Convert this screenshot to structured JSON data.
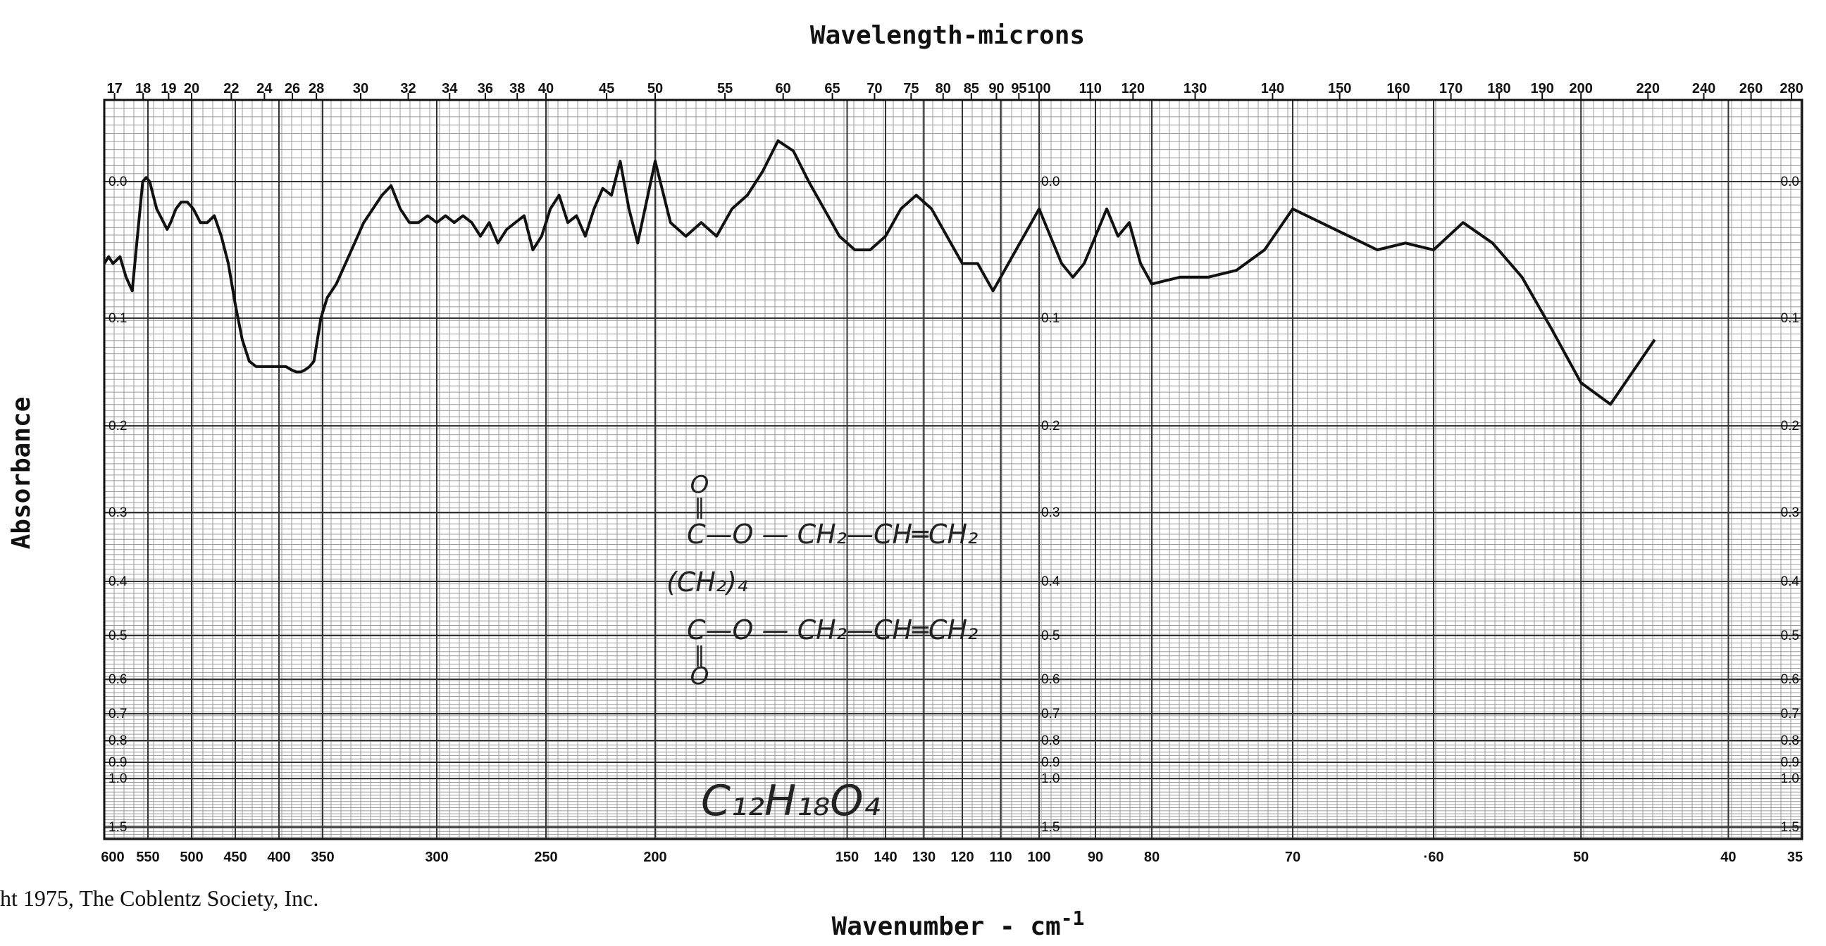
{
  "chart_data": {
    "type": "line",
    "title": "",
    "top_axis_label": "Wavelength-microns",
    "xlabel": "Wavenumber - cm",
    "xlabel_superscript": "-1",
    "ylabel": "Absorbance",
    "copyright": "ht 1975, The Coblentz Society, Inc.",
    "x_segments": [
      {
        "from": 600,
        "to": 350,
        "ticks": [
          600,
          550,
          500,
          450,
          400,
          350
        ]
      },
      {
        "from": 350,
        "to": 300,
        "ticks": [
          300
        ]
      },
      {
        "from": 300,
        "to": 200,
        "ticks": [
          250,
          200
        ]
      },
      {
        "from": 200,
        "to": 100,
        "ticks": [
          150,
          140,
          130,
          120,
          110,
          100
        ]
      },
      {
        "from": 100,
        "to": 80,
        "ticks": [
          90,
          80
        ]
      },
      {
        "from": 80,
        "to": 60,
        "ticks": [
          70,
          60
        ]
      },
      {
        "from": 60,
        "to": 35,
        "ticks": [
          50,
          40,
          35
        ]
      }
    ],
    "bottom_tick_labels": [
      "600",
      "550",
      "500",
      "450",
      "400",
      "350",
      "300",
      "250",
      "200",
      "150",
      "140",
      "130",
      "120",
      "110",
      "100",
      "90",
      "80",
      "70",
      "·60",
      "50",
      "40",
      "35"
    ],
    "top_tick_labels": [
      "17",
      "18",
      "19",
      "20",
      "22",
      "24",
      "26",
      "28",
      "30",
      "32",
      "34",
      "36",
      "38",
      "40",
      "45",
      "50",
      "55",
      "60",
      "65",
      "70",
      "75",
      "80",
      "85",
      "90",
      "95",
      "100",
      "110",
      "120",
      "130",
      "140",
      "150",
      "160",
      "170",
      "180",
      "190",
      "200",
      "220",
      "240",
      "260",
      "280"
    ],
    "y_ticks": [
      {
        "v": 0.0,
        "label": "0.0"
      },
      {
        "v": 0.1,
        "label": "0.1"
      },
      {
        "v": 0.2,
        "label": "0.2"
      },
      {
        "v": 0.3,
        "label": "0.3"
      },
      {
        "v": 0.4,
        "label": "0.4"
      },
      {
        "v": 0.5,
        "label": "0.5"
      },
      {
        "v": 0.6,
        "label": "0.6"
      },
      {
        "v": 0.7,
        "label": "0.7"
      },
      {
        "v": 0.8,
        "label": "0.8"
      },
      {
        "v": 0.9,
        "label": "0.9"
      },
      {
        "v": 1.0,
        "label": "1.0"
      },
      {
        "v": 1.5,
        "label": "1.5"
      }
    ],
    "ylim": [
      -0.04,
      1.6
    ],
    "grid": true,
    "series": [
      {
        "color": "#111111",
        "x": [
          600,
          595,
          590,
          582,
          575,
          568,
          562,
          556,
          552,
          548,
          544,
          540,
          536,
          532,
          528,
          524,
          518,
          512,
          505,
          498,
          490,
          482,
          474,
          466,
          458,
          450,
          442,
          434,
          426,
          418,
          410,
          404,
          398,
          392,
          386,
          380,
          375,
          370,
          365,
          360,
          356,
          352,
          348,
          344,
          340,
          336,
          332,
          328,
          324,
          320,
          316,
          312,
          308,
          304,
          300,
          296,
          292,
          288,
          284,
          280,
          276,
          272,
          268,
          264,
          260,
          256,
          252,
          248,
          244,
          240,
          236,
          232,
          228,
          224,
          220,
          216,
          212,
          208,
          204,
          200,
          196,
          192,
          188,
          184,
          180,
          176,
          172,
          168,
          164,
          160,
          156,
          152,
          148,
          144,
          140,
          136,
          132,
          128,
          124,
          120,
          116,
          112,
          108,
          104,
          100,
          98,
          96,
          94,
          92,
          90,
          88,
          86,
          84,
          82,
          80,
          78,
          76,
          74,
          72,
          70,
          68,
          66,
          64,
          62,
          60,
          58,
          56,
          54,
          52,
          50,
          48,
          47,
          46,
          45
        ],
        "y": [
          0.06,
          0.055,
          0.06,
          0.055,
          0.07,
          0.08,
          0.04,
          0.0,
          -0.002,
          0.0,
          0.01,
          0.02,
          0.025,
          0.03,
          0.035,
          0.03,
          0.02,
          0.015,
          0.015,
          0.02,
          0.03,
          0.03,
          0.025,
          0.04,
          0.06,
          0.09,
          0.12,
          0.14,
          0.145,
          0.145,
          0.145,
          0.145,
          0.145,
          0.145,
          0.148,
          0.15,
          0.15,
          0.148,
          0.145,
          0.14,
          0.12,
          0.1,
          0.085,
          0.075,
          0.06,
          0.045,
          0.03,
          0.02,
          0.01,
          0.003,
          0.02,
          0.03,
          0.03,
          0.025,
          0.03,
          0.025,
          0.03,
          0.025,
          0.03,
          0.04,
          0.03,
          0.045,
          0.035,
          0.03,
          0.025,
          0.05,
          0.04,
          0.02,
          0.01,
          0.03,
          0.025,
          0.04,
          0.02,
          0.005,
          0.01,
          -0.01,
          0.02,
          0.045,
          0.015,
          -0.01,
          0.03,
          0.04,
          0.03,
          0.04,
          0.02,
          0.01,
          -0.005,
          -0.02,
          -0.015,
          0.0,
          0.02,
          0.04,
          0.05,
          0.05,
          0.04,
          0.02,
          0.01,
          0.02,
          0.04,
          0.06,
          0.06,
          0.08,
          0.06,
          0.04,
          0.02,
          0.04,
          0.06,
          0.07,
          0.06,
          0.04,
          0.02,
          0.04,
          0.03,
          0.06,
          0.075,
          0.07,
          0.07,
          0.065,
          0.05,
          0.02,
          0.03,
          0.04,
          0.05,
          0.045,
          0.05,
          0.03,
          0.045,
          0.07,
          0.11,
          0.16,
          0.18,
          0.16,
          0.14,
          0.12
        ]
      }
    ],
    "annotations": [
      {
        "id": "struct_o_top",
        "text": "O"
      },
      {
        "id": "struct_dbl_top",
        "text": "‖"
      },
      {
        "id": "struct_row1",
        "text": "C—O — CH₂—CH═CH₂"
      },
      {
        "id": "struct_row2",
        "text": "(CH₂)₄"
      },
      {
        "id": "struct_row3",
        "text": "C—O — CH₂—CH═CH₂"
      },
      {
        "id": "struct_dbl_bottom",
        "text": "‖"
      },
      {
        "id": "struct_o_bottom",
        "text": "O"
      },
      {
        "id": "formula",
        "text": "C₁₂H₁₈O₄"
      }
    ]
  }
}
